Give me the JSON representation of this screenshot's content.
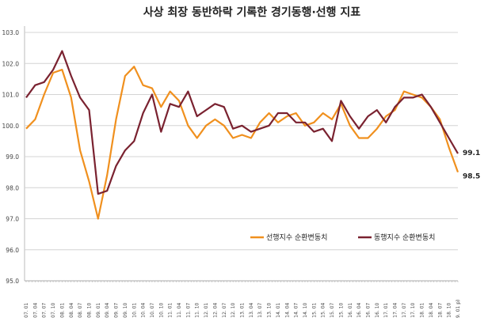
{
  "chart_data": {
    "type": "line",
    "title": "사상 최장 동반하락 기록한 경기동행·선행 지표",
    "xlabel": "",
    "ylabel": "",
    "ylim": [
      95.0,
      103.0
    ],
    "yticks": [
      "95.0",
      "96.0",
      "97.0",
      "98.0",
      "99.0",
      "100.0",
      "101.0",
      "102.0",
      "103.0"
    ],
    "grid": true,
    "legend_position": "bottom-right",
    "x": [
      "2007. 01",
      "2007. 04",
      "2007. 07",
      "2007. 10",
      "2008. 01",
      "2008. 04",
      "2008. 07",
      "2008. 10",
      "2009. 01",
      "2009. 04",
      "2009. 07",
      "2009. 10",
      "2010. 01",
      "2010. 04",
      "2010. 07",
      "2010. 10",
      "2011. 01",
      "2011. 04",
      "2011. 07",
      "2011. 10",
      "2012. 01",
      "2012. 04",
      "2012. 07",
      "2012. 10",
      "2013. 01",
      "2013. 04",
      "2013. 07",
      "2013. 10",
      "2014. 01",
      "2014. 04",
      "2014. 07",
      "2014. 10",
      "2015. 01",
      "2015. 04",
      "2015. 07",
      "2015. 10",
      "2016. 01",
      "2016. 04",
      "2016. 07",
      "2016. 10",
      "2017. 01",
      "2017. 04",
      "2017. 07",
      "2017. 10",
      "2018. 01",
      "2018. 04",
      "2018. 07",
      "2018. 10",
      "2019. 01 p)"
    ],
    "series": [
      {
        "name": "선행지수 순환변동치",
        "color": "#F0901E",
        "values": [
          99.9,
          100.2,
          101.0,
          101.7,
          101.8,
          100.9,
          99.2,
          98.2,
          97.0,
          98.4,
          100.2,
          101.6,
          101.9,
          101.3,
          101.2,
          100.6,
          101.1,
          100.8,
          100.0,
          99.6,
          100.0,
          100.2,
          100.0,
          99.6,
          99.7,
          99.6,
          100.1,
          100.4,
          100.1,
          100.3,
          100.4,
          100.0,
          100.1,
          100.4,
          100.2,
          100.7,
          100.0,
          99.6,
          99.6,
          99.9,
          100.3,
          100.5,
          101.1,
          101.0,
          100.9,
          100.6,
          100.2,
          99.3,
          98.5
        ],
        "end_label": "98.5"
      },
      {
        "name": "동행지수 순환변동치",
        "color": "#7A2230",
        "values": [
          100.9,
          101.3,
          101.4,
          101.8,
          102.4,
          101.6,
          100.9,
          100.5,
          97.8,
          97.9,
          98.7,
          99.2,
          99.5,
          100.4,
          101.0,
          99.8,
          100.7,
          100.6,
          101.1,
          100.3,
          100.5,
          100.7,
          100.6,
          99.9,
          100.0,
          99.8,
          99.9,
          100.0,
          100.4,
          100.4,
          100.1,
          100.1,
          99.8,
          99.9,
          99.5,
          100.8,
          100.3,
          99.9,
          100.3,
          100.5,
          100.1,
          100.6,
          100.9,
          100.9,
          101.0,
          100.6,
          100.1,
          99.6,
          99.1
        ],
        "end_label": "99.1"
      }
    ]
  }
}
